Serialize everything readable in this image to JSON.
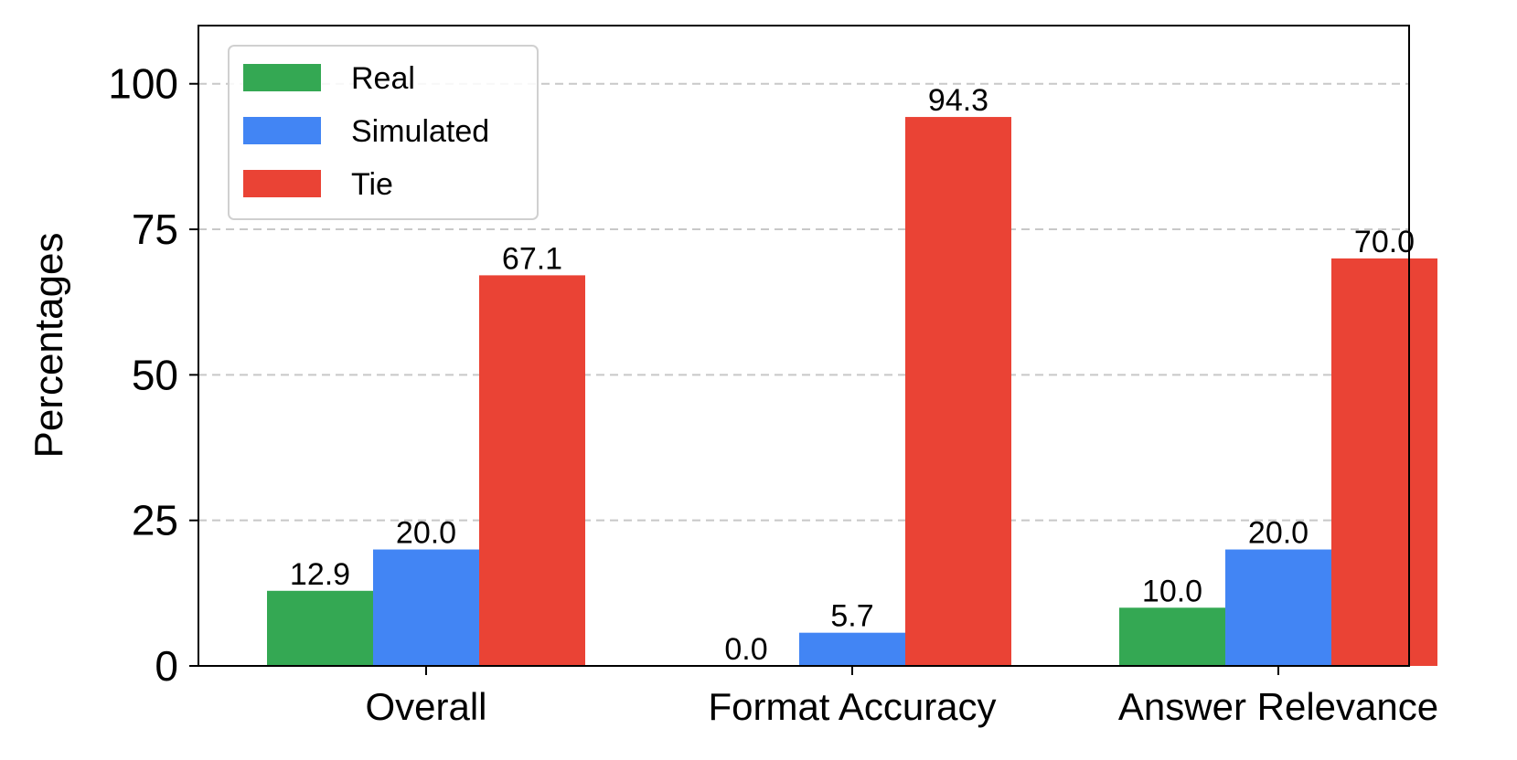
{
  "chart_data": {
    "type": "bar",
    "categories": [
      "Overall",
      "Format Accuracy",
      "Answer Relevance"
    ],
    "series": [
      {
        "name": "Real",
        "color": "#34a853",
        "values": [
          12.9,
          0.0,
          10.0
        ]
      },
      {
        "name": "Simulated",
        "color": "#4285f4",
        "values": [
          20.0,
          5.7,
          20.0
        ]
      },
      {
        "name": "Tie",
        "color": "#ea4335",
        "values": [
          67.1,
          94.3,
          70.0
        ]
      }
    ],
    "data_labels": [
      [
        "12.9",
        "0.0",
        "10.0"
      ],
      [
        "20.0",
        "5.7",
        "20.0"
      ],
      [
        "67.1",
        "94.3",
        "70.0"
      ]
    ],
    "ylabel": "Percentages",
    "xlabel": "",
    "ylim": [
      0,
      110
    ],
    "yticks": [
      0,
      25,
      50,
      75,
      100
    ],
    "ytick_labels": [
      "0",
      "25",
      "50",
      "75",
      "100"
    ],
    "grid": "y-dashed",
    "legend_position": "top-left"
  }
}
